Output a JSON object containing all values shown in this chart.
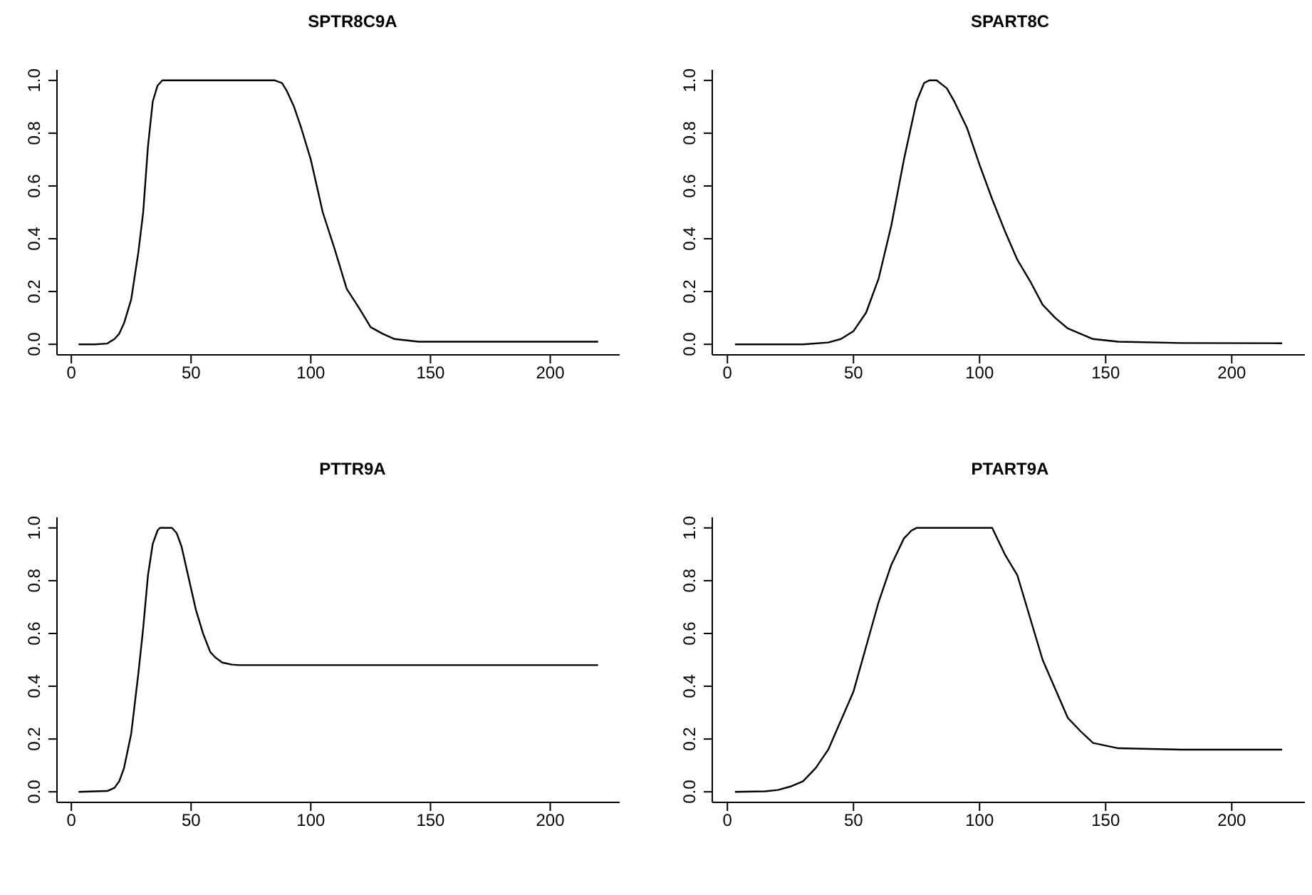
{
  "chart_data": [
    {
      "type": "line",
      "title": "SPTR8C9A",
      "color": "#000000",
      "xlim": [
        -6,
        229
      ],
      "ylim": [
        -0.04,
        1.04
      ],
      "xticks": [
        0,
        50,
        100,
        150,
        200
      ],
      "yticks": [
        {
          "value": 0,
          "label": "0.0"
        },
        {
          "value": 0.2,
          "label": "0.2"
        },
        {
          "value": 0.4,
          "label": "0.4"
        },
        {
          "value": 0.6,
          "label": "0.6"
        },
        {
          "value": 0.8,
          "label": "0.8"
        },
        {
          "value": 1,
          "label": "1.0"
        }
      ],
      "x": [
        3,
        10,
        15,
        18,
        20,
        22,
        25,
        28,
        30,
        32,
        34,
        36,
        38,
        50,
        70,
        85,
        88,
        90,
        93,
        96,
        100,
        105,
        110,
        115,
        120,
        125,
        130,
        135,
        145,
        160,
        220
      ],
      "values": [
        0,
        0,
        0.003,
        0.02,
        0.04,
        0.08,
        0.17,
        0.35,
        0.5,
        0.75,
        0.92,
        0.98,
        1,
        1,
        1,
        1,
        0.99,
        0.96,
        0.9,
        0.82,
        0.7,
        0.5,
        0.36,
        0.21,
        0.14,
        0.065,
        0.04,
        0.02,
        0.01,
        0.01,
        0.01
      ]
    },
    {
      "type": "line",
      "title": "SPART8C",
      "color": "#000000",
      "xlim": [
        -6,
        229
      ],
      "ylim": [
        -0.04,
        1.04
      ],
      "xticks": [
        0,
        50,
        100,
        150,
        200
      ],
      "yticks": [
        {
          "value": 0,
          "label": "0.0"
        },
        {
          "value": 0.2,
          "label": "0.2"
        },
        {
          "value": 0.4,
          "label": "0.4"
        },
        {
          "value": 0.6,
          "label": "0.6"
        },
        {
          "value": 0.8,
          "label": "0.8"
        },
        {
          "value": 1,
          "label": "1.0"
        }
      ],
      "x": [
        3,
        30,
        40,
        45,
        50,
        55,
        60,
        65,
        70,
        75,
        78,
        80,
        83,
        87,
        90,
        95,
        100,
        105,
        110,
        115,
        120,
        125,
        130,
        135,
        140,
        145,
        155,
        180,
        220
      ],
      "values": [
        0,
        0,
        0.007,
        0.02,
        0.05,
        0.12,
        0.25,
        0.45,
        0.7,
        0.92,
        0.99,
        1,
        1,
        0.97,
        0.92,
        0.82,
        0.68,
        0.55,
        0.43,
        0.32,
        0.24,
        0.15,
        0.1,
        0.06,
        0.04,
        0.02,
        0.01,
        0.005,
        0.004
      ]
    },
    {
      "type": "line",
      "title": "PTTR9A",
      "color": "#000000",
      "xlim": [
        -6,
        229
      ],
      "ylim": [
        -0.04,
        1.04
      ],
      "xticks": [
        0,
        50,
        100,
        150,
        200
      ],
      "yticks": [
        {
          "value": 0,
          "label": "0.0"
        },
        {
          "value": 0.2,
          "label": "0.2"
        },
        {
          "value": 0.4,
          "label": "0.4"
        },
        {
          "value": 0.6,
          "label": "0.6"
        },
        {
          "value": 0.8,
          "label": "0.8"
        },
        {
          "value": 1,
          "label": "1.0"
        }
      ],
      "x": [
        3,
        15,
        18,
        20,
        22,
        25,
        28,
        30,
        32,
        34,
        36,
        37,
        42,
        44,
        46,
        48,
        50,
        52,
        55,
        58,
        60,
        63,
        67,
        70,
        220
      ],
      "values": [
        0,
        0.003,
        0.015,
        0.04,
        0.09,
        0.22,
        0.45,
        0.62,
        0.82,
        0.94,
        0.99,
        1,
        1,
        0.98,
        0.93,
        0.85,
        0.77,
        0.69,
        0.6,
        0.53,
        0.51,
        0.49,
        0.482,
        0.48,
        0.48
      ]
    },
    {
      "type": "line",
      "title": "PTART9A",
      "color": "#000000",
      "xlim": [
        -6,
        229
      ],
      "ylim": [
        -0.04,
        1.04
      ],
      "xticks": [
        0,
        50,
        100,
        150,
        200
      ],
      "yticks": [
        {
          "value": 0,
          "label": "0.0"
        },
        {
          "value": 0.2,
          "label": "0.2"
        },
        {
          "value": 0.4,
          "label": "0.4"
        },
        {
          "value": 0.6,
          "label": "0.6"
        },
        {
          "value": 0.8,
          "label": "0.8"
        },
        {
          "value": 1,
          "label": "1.0"
        }
      ],
      "x": [
        3,
        15,
        20,
        25,
        30,
        35,
        40,
        45,
        50,
        55,
        60,
        65,
        70,
        73,
        75,
        100,
        105,
        110,
        115,
        120,
        125,
        130,
        135,
        140,
        145,
        150,
        155,
        180,
        220
      ],
      "values": [
        0,
        0.002,
        0.007,
        0.02,
        0.04,
        0.09,
        0.16,
        0.27,
        0.38,
        0.55,
        0.72,
        0.86,
        0.96,
        0.99,
        1,
        1,
        1,
        0.9,
        0.82,
        0.66,
        0.5,
        0.39,
        0.28,
        0.23,
        0.185,
        0.175,
        0.165,
        0.16,
        0.16
      ]
    }
  ]
}
